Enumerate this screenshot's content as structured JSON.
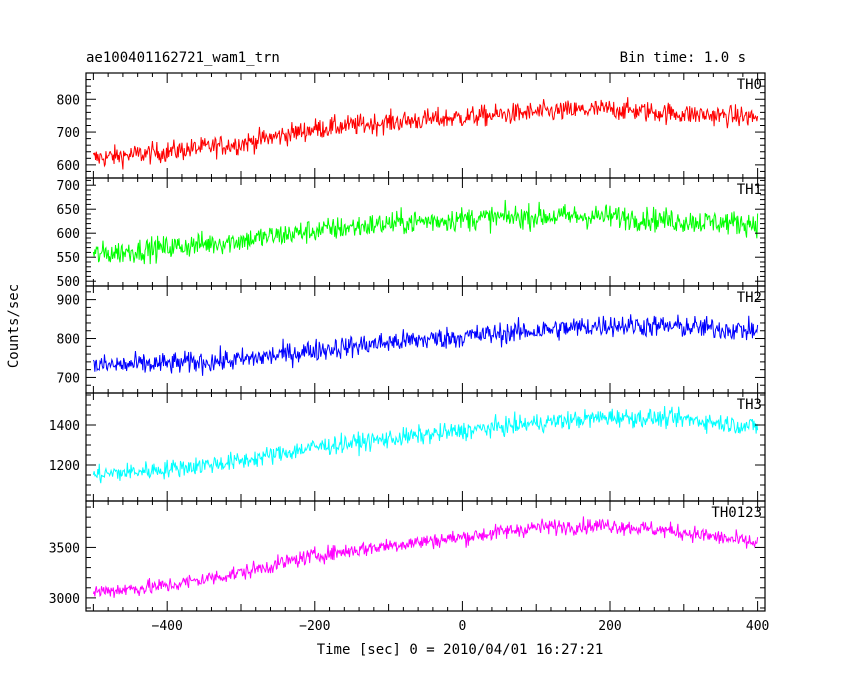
{
  "header": {
    "title": "ae100401162721_wam1_trn",
    "bin_time": "Bin time: 1.0 s"
  },
  "chart_data": {
    "type": "line",
    "title": "ae100401162721_wam1_trn",
    "subtitle": "Bin time: 1.0 s",
    "xlabel": "Time [sec] 0 = 2010/04/01 16:27:21",
    "ylabel": "Counts/sec",
    "xlim": [
      -510,
      410
    ],
    "x_ticks": [
      -400,
      -200,
      0,
      200,
      400
    ],
    "x_step": 1,
    "grid": false,
    "panels": [
      {
        "name": "TH0",
        "color": "#ff0000",
        "ylim": [
          560,
          880
        ],
        "y_ticks": [
          600,
          700,
          800
        ],
        "trend_x": [
          -500,
          -400,
          -300,
          -200,
          -100,
          0,
          100,
          200,
          300,
          400
        ],
        "trend_y": [
          620,
          640,
          665,
          710,
          730,
          745,
          760,
          770,
          755,
          745
        ],
        "noise_amplitude": 45
      },
      {
        "name": "TH1",
        "color": "#00ff00",
        "ylim": [
          490,
          715
        ],
        "y_ticks": [
          500,
          550,
          600,
          650,
          700
        ],
        "trend_x": [
          -500,
          -400,
          -300,
          -200,
          -100,
          0,
          100,
          200,
          300,
          400
        ],
        "trend_y": [
          555,
          570,
          585,
          605,
          620,
          630,
          635,
          635,
          625,
          620
        ],
        "noise_amplitude": 35
      },
      {
        "name": "TH2",
        "color": "#0000ff",
        "ylim": [
          660,
          935
        ],
        "y_ticks": [
          700,
          800,
          900
        ],
        "trend_x": [
          -500,
          -400,
          -300,
          -200,
          -100,
          0,
          100,
          200,
          300,
          400
        ],
        "trend_y": [
          730,
          735,
          745,
          770,
          790,
          805,
          820,
          835,
          830,
          820
        ],
        "noise_amplitude": 40
      },
      {
        "name": "TH3",
        "color": "#00ffff",
        "ylim": [
          1020,
          1560
        ],
        "y_ticks": [
          1200,
          1400
        ],
        "trend_x": [
          -500,
          -400,
          -300,
          -200,
          -100,
          0,
          100,
          200,
          300,
          400
        ],
        "trend_y": [
          1150,
          1180,
          1220,
          1290,
          1330,
          1370,
          1410,
          1440,
          1430,
          1390
        ],
        "noise_amplitude": 65
      },
      {
        "name": "TH0123",
        "color": "#ff00ff",
        "ylim": [
          2870,
          3960
        ],
        "y_ticks": [
          3000,
          3500
        ],
        "trend_x": [
          -500,
          -400,
          -300,
          -200,
          -100,
          0,
          100,
          200,
          300,
          400
        ],
        "trend_y": [
          3060,
          3120,
          3250,
          3420,
          3520,
          3600,
          3700,
          3720,
          3650,
          3540
        ],
        "noise_amplitude": 110
      }
    ]
  }
}
